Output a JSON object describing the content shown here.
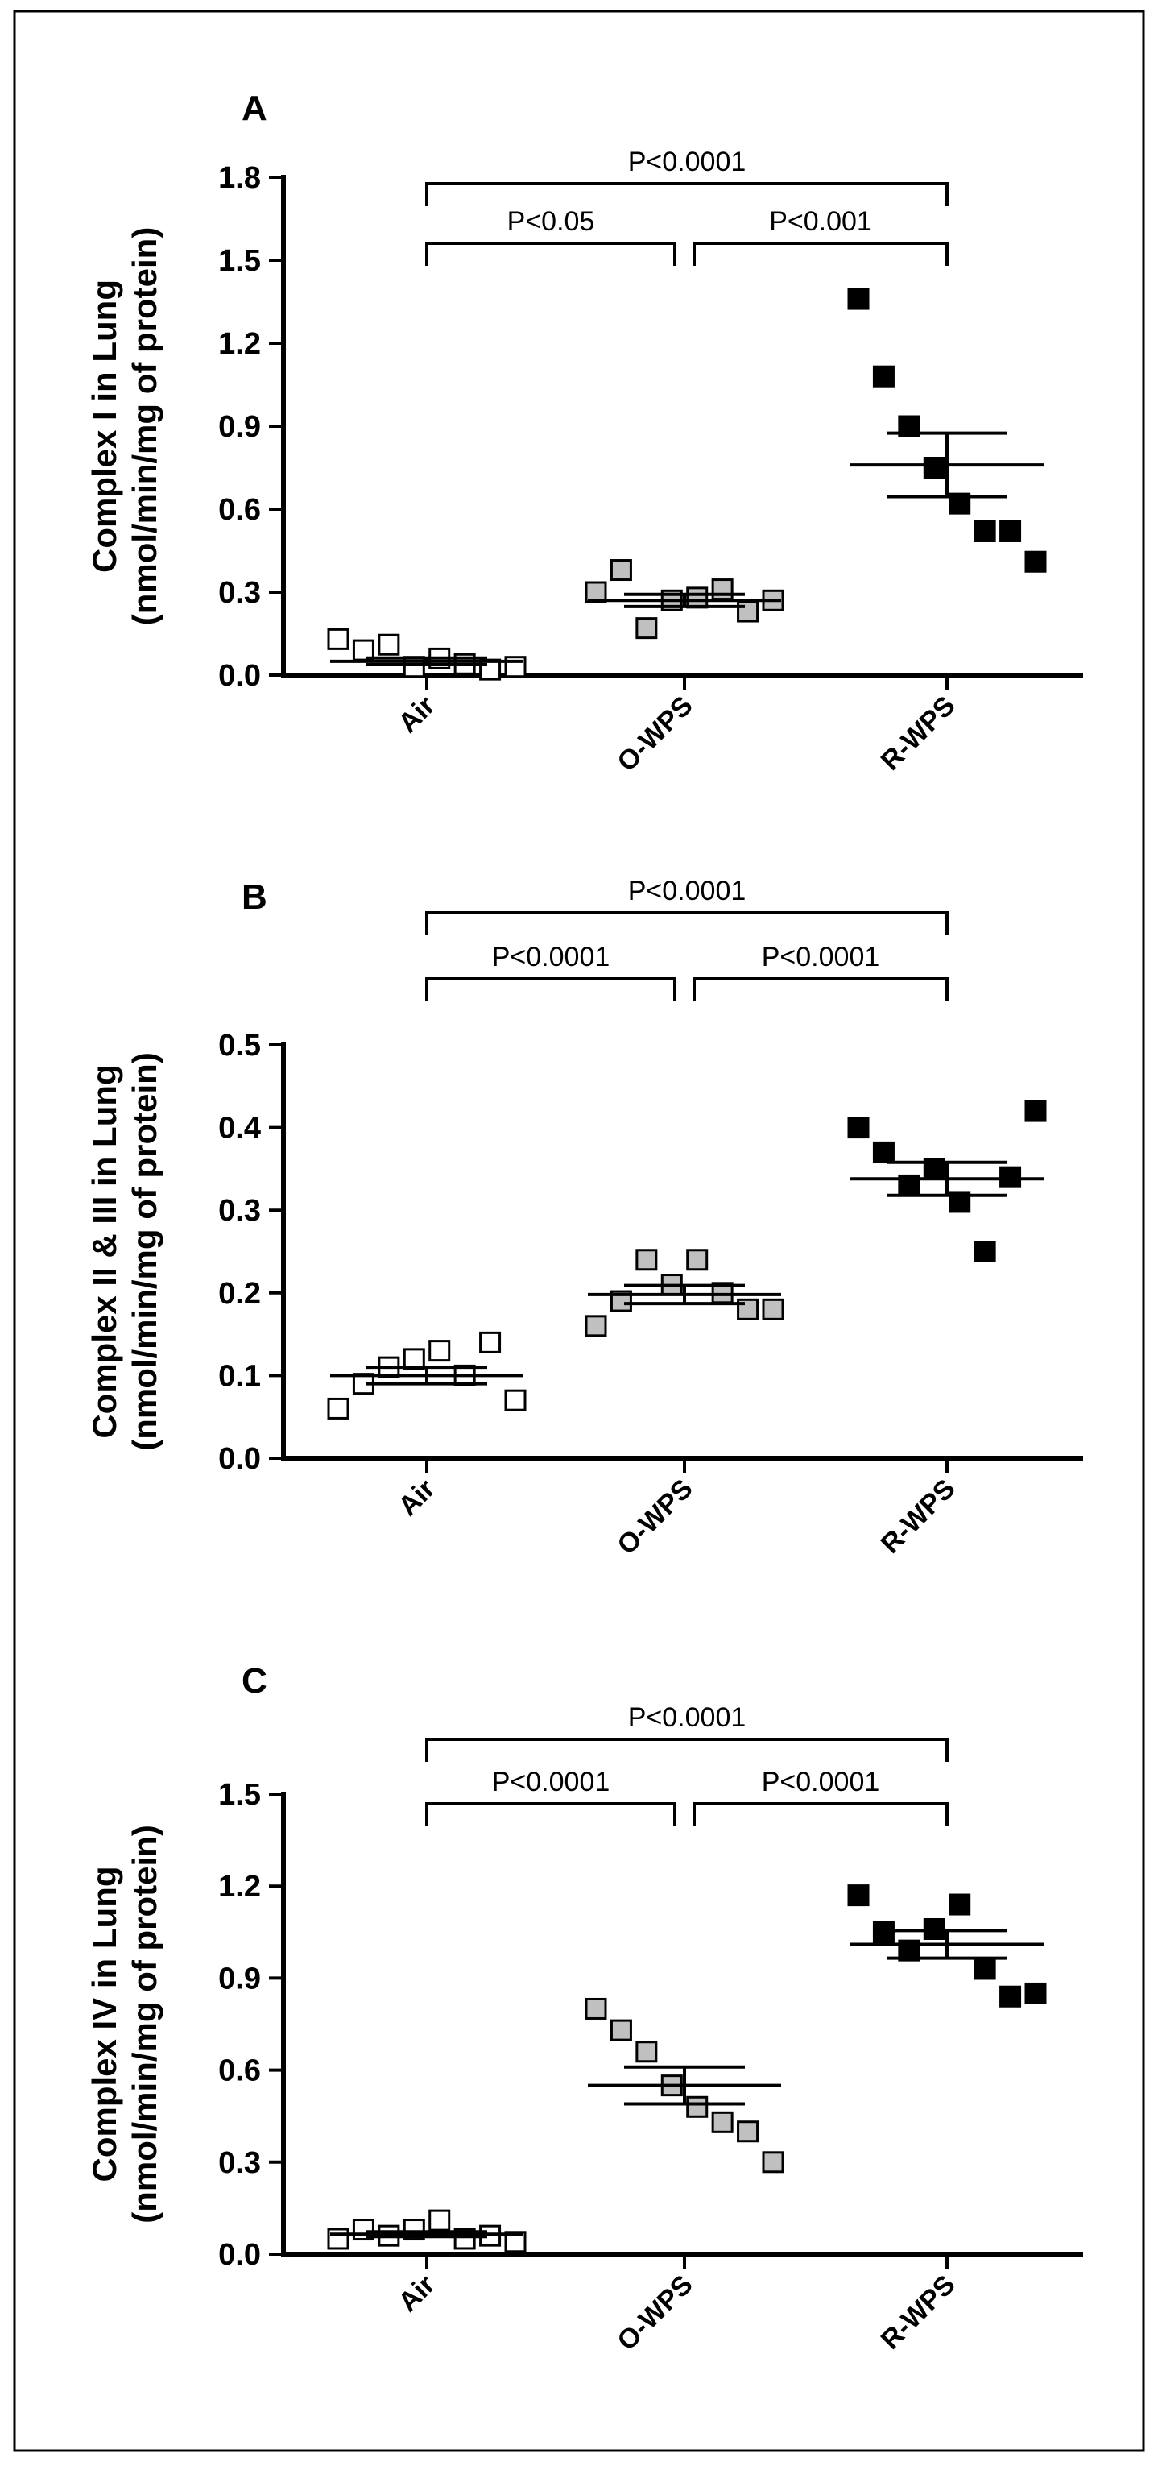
{
  "figure": {
    "colors": {
      "air": "#ffffff",
      "owps": "#c0c0c0",
      "rwps": "#000000"
    }
  },
  "chart_data": [
    {
      "type": "scatter",
      "panel": "A",
      "ylabel_line1": "Complex I in Lung",
      "ylabel_line2": "(nmol/min/mg of protein)",
      "ylim": [
        0,
        1.8
      ],
      "yticks": [
        "0.0",
        "0.3",
        "0.6",
        "0.9",
        "1.2",
        "1.5",
        "1.8"
      ],
      "categories": [
        "Air",
        "O-WPS",
        "R-WPS"
      ],
      "series": [
        {
          "name": "Air",
          "values": [
            0.13,
            0.09,
            0.11,
            0.03,
            0.06,
            0.04,
            0.02,
            0.03
          ],
          "mean": 0.05,
          "sem": 0.012
        },
        {
          "name": "O-WPS",
          "values": [
            0.3,
            0.38,
            0.17,
            0.27,
            0.28,
            0.31,
            0.23,
            0.27
          ],
          "mean": 0.27,
          "sem": 0.022
        },
        {
          "name": "R-WPS",
          "values": [
            1.36,
            1.08,
            0.9,
            0.75,
            0.62,
            0.52,
            0.52,
            0.41
          ],
          "mean": 0.76,
          "sem": 0.115
        }
      ],
      "comparisons": [
        {
          "from": "Air",
          "to": "O-WPS",
          "label": "P<0.05",
          "level": 1
        },
        {
          "from": "O-WPS",
          "to": "R-WPS",
          "label": "P<0.001",
          "level": 1
        },
        {
          "from": "Air",
          "to": "R-WPS",
          "label": "P<0.0001",
          "level": 2
        }
      ]
    },
    {
      "type": "scatter",
      "panel": "B",
      "ylabel_line1": "Complex II & III in Lung",
      "ylabel_line2": "(nmol/min/mg of protein)",
      "ylim": [
        0,
        0.5
      ],
      "yticks": [
        "0.0",
        "0.1",
        "0.2",
        "0.3",
        "0.4",
        "0.5"
      ],
      "categories": [
        "Air",
        "O-WPS",
        "R-WPS"
      ],
      "series": [
        {
          "name": "Air",
          "values": [
            0.06,
            0.09,
            0.11,
            0.12,
            0.13,
            0.1,
            0.14,
            0.07
          ],
          "mean": 0.1,
          "sem": 0.01
        },
        {
          "name": "O-WPS",
          "values": [
            0.16,
            0.19,
            0.24,
            0.21,
            0.24,
            0.2,
            0.18,
            0.18
          ],
          "mean": 0.198,
          "sem": 0.011
        },
        {
          "name": "R-WPS",
          "values": [
            0.4,
            0.37,
            0.33,
            0.35,
            0.31,
            0.25,
            0.34,
            0.42
          ],
          "mean": 0.338,
          "sem": 0.02
        }
      ],
      "comparisons": [
        {
          "from": "Air",
          "to": "O-WPS",
          "label": "P<0.0001",
          "level": 1
        },
        {
          "from": "O-WPS",
          "to": "R-WPS",
          "label": "P<0.0001",
          "level": 1
        },
        {
          "from": "Air",
          "to": "R-WPS",
          "label": "P<0.0001",
          "level": 2
        }
      ]
    },
    {
      "type": "scatter",
      "panel": "C",
      "ylabel_line1": "Complex IV in Lung",
      "ylabel_line2": "(nmol/min/mg of protein)",
      "ylim": [
        0,
        1.5
      ],
      "yticks": [
        "0.0",
        "0.3",
        "0.6",
        "0.9",
        "1.2",
        "1.5"
      ],
      "categories": [
        "Air",
        "O-WPS",
        "R-WPS"
      ],
      "series": [
        {
          "name": "Air",
          "values": [
            0.05,
            0.08,
            0.06,
            0.08,
            0.11,
            0.05,
            0.06,
            0.04
          ],
          "mean": 0.065,
          "sem": 0.008
        },
        {
          "name": "O-WPS",
          "values": [
            0.8,
            0.73,
            0.66,
            0.55,
            0.48,
            0.43,
            0.4,
            0.3
          ],
          "mean": 0.55,
          "sem": 0.06
        },
        {
          "name": "R-WPS",
          "values": [
            1.17,
            1.05,
            0.99,
            1.06,
            1.14,
            0.93,
            0.84,
            0.85
          ],
          "mean": 1.01,
          "sem": 0.045
        }
      ],
      "comparisons": [
        {
          "from": "Air",
          "to": "O-WPS",
          "label": "P<0.0001",
          "level": 1
        },
        {
          "from": "O-WPS",
          "to": "R-WPS",
          "label": "P<0.0001",
          "level": 1
        },
        {
          "from": "Air",
          "to": "R-WPS",
          "label": "P<0.0001",
          "level": 2
        }
      ]
    }
  ]
}
